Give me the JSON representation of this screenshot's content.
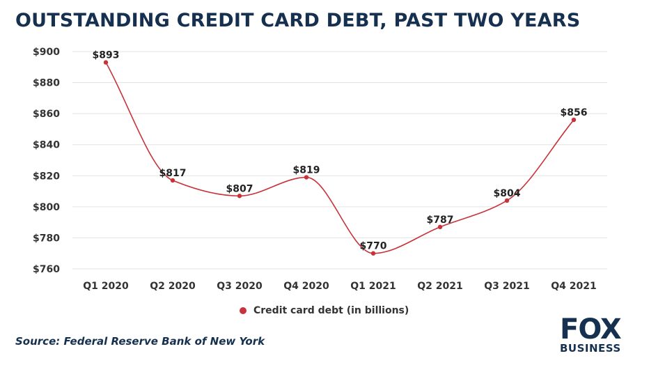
{
  "title": "OUTSTANDING CREDIT CARD DEBT, PAST TWO YEARS",
  "source": "Source: Federal Reserve Bank of New York",
  "logo": {
    "line1": "FOX",
    "line2": "BUSINESS"
  },
  "colors": {
    "line": "#c8323a",
    "title": "#16304f",
    "grid": "#e3e3e3",
    "text": "#333333"
  },
  "chart_data": {
    "type": "line",
    "categories": [
      "Q1 2020",
      "Q2 2020",
      "Q3 2020",
      "Q4 2020",
      "Q1 2021",
      "Q2 2021",
      "Q3 2021",
      "Q4 2021"
    ],
    "series": [
      {
        "name": "Credit card debt (in billions)",
        "values": [
          893,
          817,
          807,
          819,
          770,
          787,
          804,
          856
        ]
      }
    ],
    "data_labels": [
      "$893",
      "$817",
      "$807",
      "$819",
      "$770",
      "$787",
      "$804",
      "$856"
    ],
    "y_ticks": [
      760,
      780,
      800,
      820,
      840,
      860,
      880,
      900
    ],
    "y_tick_labels": [
      "$760",
      "$780",
      "$800",
      "$820",
      "$840",
      "$860",
      "$880",
      "$900"
    ],
    "ylim": [
      760,
      900
    ],
    "grid": true,
    "smooth": true,
    "legend_position": "bottom"
  }
}
